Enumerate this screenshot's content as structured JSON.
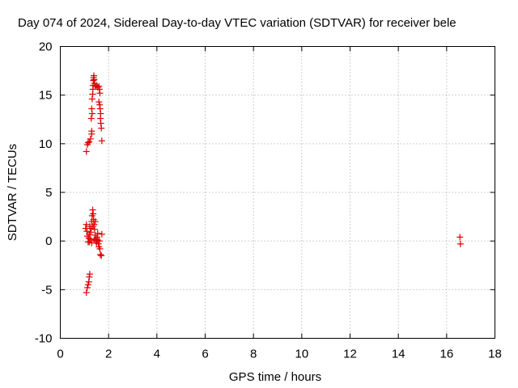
{
  "chart_data": {
    "type": "scatter",
    "title": "Day 074 of 2024, Sidereal Day-to-day VTEC variation (SDTVAR) for receiver bele",
    "xlabel": "GPS time / hours",
    "ylabel": "SDTVAR / TECUs",
    "xlim": [
      0,
      18
    ],
    "ylim": [
      -10,
      20
    ],
    "xticks": [
      "0",
      "2",
      "4",
      "6",
      "8",
      "10",
      "12",
      "14",
      "16",
      "18"
    ],
    "yticks": [
      "-10",
      "-5",
      "0",
      "5",
      "10",
      "15",
      "20"
    ],
    "grid": true,
    "marker": "+",
    "color": "#dd0000",
    "series": [
      {
        "name": "SDTVAR",
        "points": [
          [
            1.08,
            9.2
          ],
          [
            1.12,
            9.9
          ],
          [
            1.15,
            10.1
          ],
          [
            1.2,
            10.2
          ],
          [
            1.25,
            10.5
          ],
          [
            1.3,
            11.0
          ],
          [
            1.3,
            11.3
          ],
          [
            1.28,
            12.6
          ],
          [
            1.32,
            13.1
          ],
          [
            1.3,
            13.6
          ],
          [
            1.32,
            14.6
          ],
          [
            1.34,
            15.1
          ],
          [
            1.35,
            15.6
          ],
          [
            1.36,
            16.0
          ],
          [
            1.37,
            16.5
          ],
          [
            1.38,
            16.8
          ],
          [
            1.39,
            17.0
          ],
          [
            1.4,
            16.6
          ],
          [
            1.42,
            16.2
          ],
          [
            1.45,
            15.9
          ],
          [
            1.5,
            16.0
          ],
          [
            1.55,
            15.8
          ],
          [
            1.6,
            15.9
          ],
          [
            1.62,
            15.6
          ],
          [
            1.64,
            15.2
          ],
          [
            1.6,
            14.3
          ],
          [
            1.63,
            14.0
          ],
          [
            1.65,
            13.6
          ],
          [
            1.67,
            13.1
          ],
          [
            1.66,
            12.6
          ],
          [
            1.68,
            12.1
          ],
          [
            1.7,
            11.6
          ],
          [
            1.72,
            10.3
          ],
          [
            1.05,
            1.3
          ],
          [
            1.08,
            1.7
          ],
          [
            1.1,
            1.0
          ],
          [
            1.12,
            0.5
          ],
          [
            1.15,
            -0.1
          ],
          [
            1.18,
            0.3
          ],
          [
            1.2,
            0.7
          ],
          [
            1.22,
            1.5
          ],
          [
            1.25,
            0.9
          ],
          [
            1.28,
            1.3
          ],
          [
            1.3,
            2.0
          ],
          [
            1.32,
            2.6
          ],
          [
            1.34,
            3.2
          ],
          [
            1.36,
            2.8
          ],
          [
            1.38,
            2.2
          ],
          [
            1.4,
            1.7
          ],
          [
            1.42,
            1.2
          ],
          [
            1.44,
            0.6
          ],
          [
            1.46,
            0.2
          ],
          [
            1.48,
            0.0
          ],
          [
            1.5,
            -0.2
          ],
          [
            1.52,
            0.4
          ],
          [
            1.55,
            0.1
          ],
          [
            1.58,
            -0.3
          ],
          [
            1.6,
            -0.6
          ],
          [
            1.62,
            0.0
          ],
          [
            1.64,
            -0.8
          ],
          [
            1.66,
            -1.4
          ],
          [
            1.7,
            -1.5
          ],
          [
            1.72,
            0.7
          ],
          [
            1.25,
            0.2
          ],
          [
            1.35,
            1.5
          ],
          [
            1.45,
            2.0
          ],
          [
            1.55,
            0.8
          ],
          [
            1.4,
            0.1
          ],
          [
            1.3,
            -0.2
          ],
          [
            1.2,
            -0.1
          ],
          [
            1.08,
            -5.3
          ],
          [
            1.12,
            -4.8
          ],
          [
            1.15,
            -4.5
          ],
          [
            1.18,
            -4.2
          ],
          [
            1.2,
            -3.7
          ],
          [
            1.22,
            -3.4
          ],
          [
            16.55,
            0.4
          ],
          [
            16.57,
            -0.3
          ]
        ]
      }
    ]
  }
}
